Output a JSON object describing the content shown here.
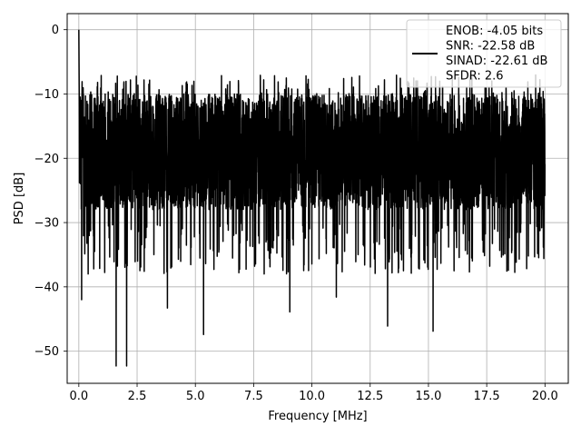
{
  "chart_data": {
    "type": "line",
    "title": "",
    "xlabel": "Frequency [MHz]",
    "ylabel": "PSD [dB]",
    "xlim": [
      -0.5,
      21.0
    ],
    "ylim": [
      -55,
      2.5
    ],
    "xticks": [
      0.0,
      2.5,
      5.0,
      7.5,
      10.0,
      12.5,
      15.0,
      17.5,
      20.0
    ],
    "xtick_labels": [
      "0.0",
      "2.5",
      "5.0",
      "7.5",
      "10.0",
      "12.5",
      "15.0",
      "17.5",
      "20.0"
    ],
    "yticks": [
      0,
      -10,
      -20,
      -30,
      -40,
      -50
    ],
    "ytick_labels": [
      "0",
      "−10",
      "−20",
      "−30",
      "−40",
      "−50"
    ],
    "grid": true,
    "legend_position": "top-right",
    "legend_lines": [
      "ENOB: -4.05 bits",
      "SNR: -22.58 dB",
      "SINAD: -22.61 dB",
      "SFDR: 2.6"
    ],
    "series": [
      {
        "color": "#000000",
        "x_range": [
          0.0,
          20.0
        ],
        "band": [
          -28,
          -10
        ],
        "peak": {
          "x": 0.0,
          "y": 0.0
        },
        "dips": [
          {
            "x": 0.12,
            "y": -42
          },
          {
            "x": 0.4,
            "y": -38
          },
          {
            "x": 1.6,
            "y": -52.3
          },
          {
            "x": 2.05,
            "y": -52.3
          },
          {
            "x": 3.8,
            "y": -43.3
          },
          {
            "x": 5.35,
            "y": -47.4
          },
          {
            "x": 9.05,
            "y": -43.9
          },
          {
            "x": 11.05,
            "y": -41.6
          },
          {
            "x": 13.25,
            "y": -46.1
          },
          {
            "x": 15.2,
            "y": -46.9
          },
          {
            "x": 16.1,
            "y": -37.5
          },
          {
            "x": 19.95,
            "y": -35.6
          }
        ]
      }
    ]
  }
}
